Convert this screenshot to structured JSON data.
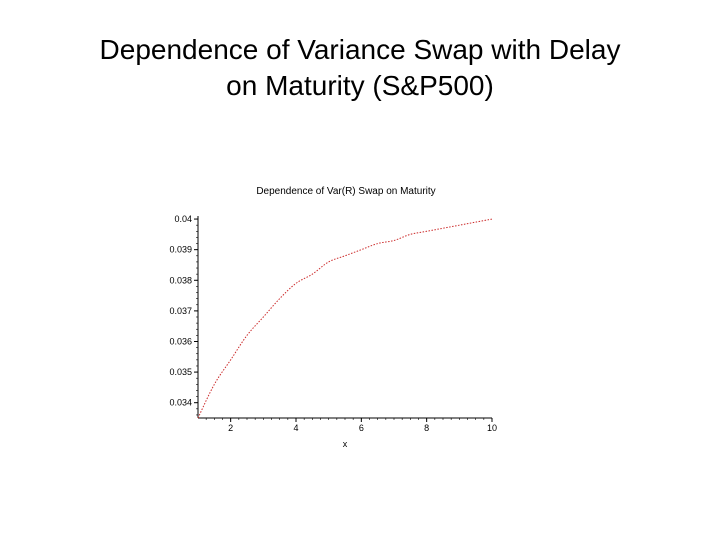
{
  "slide": {
    "title_line1": "Dependence of Variance Swap with Delay",
    "title_line2": "on Maturity (S&P500)"
  },
  "chart_data": {
    "type": "line",
    "title": "Dependence of Var(R) Swap on Maturity",
    "xlabel": "x",
    "ylabel": "",
    "xlim": [
      1,
      10
    ],
    "ylim": [
      0.0335,
      0.0401
    ],
    "xticks": [
      2,
      4,
      6,
      8,
      10
    ],
    "xtick_labels": [
      "2",
      "4",
      "6",
      "8",
      "10"
    ],
    "yticks": [
      0.034,
      0.035,
      0.036,
      0.037,
      0.038,
      0.039,
      0.04
    ],
    "ytick_labels": [
      "0.034",
      "0.035",
      "0.036",
      "0.037",
      "0.038",
      "0.039",
      "0.04"
    ],
    "grid": false,
    "line_style": "dotted",
    "color": "#cc2a2a",
    "series": [
      {
        "x": [
          1,
          1.5,
          2,
          2.5,
          3,
          3.5,
          4,
          4.5,
          5,
          5.5,
          6,
          6.5,
          7,
          7.5,
          8,
          8.5,
          9,
          9.5,
          10
        ],
        "values": [
          0.0335,
          0.0346,
          0.0354,
          0.0362,
          0.0368,
          0.0374,
          0.0379,
          0.0382,
          0.0386,
          0.0388,
          0.039,
          0.0392,
          0.0393,
          0.0395,
          0.0396,
          0.0397,
          0.0398,
          0.0399,
          0.04
        ]
      }
    ]
  }
}
